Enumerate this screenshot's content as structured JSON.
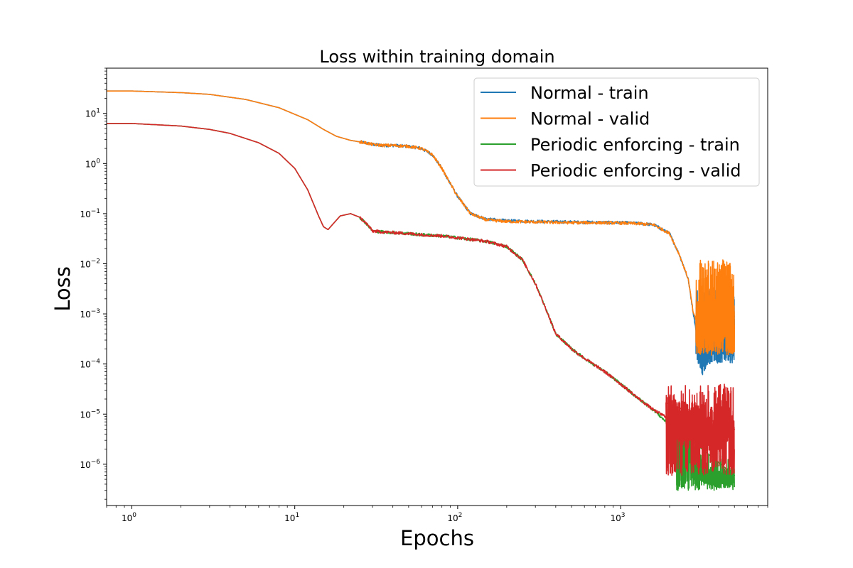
{
  "chart_data": {
    "type": "line",
    "title": "Loss within training domain",
    "xlabel": "Epochs",
    "ylabel": "Loss",
    "xscale": "log",
    "yscale": "log",
    "xlim": [
      0.7,
      8000
    ],
    "ylim": [
      1.5e-07,
      80
    ],
    "grid": false,
    "legend_position": "upper-right",
    "x_ticks": [
      {
        "value": 1,
        "base": "10",
        "exp": "0"
      },
      {
        "value": 10,
        "base": "10",
        "exp": "1"
      },
      {
        "value": 100,
        "base": "10",
        "exp": "2"
      },
      {
        "value": 1000,
        "base": "10",
        "exp": "3"
      }
    ],
    "y_ticks": [
      {
        "value": 10,
        "base": "10",
        "exp": "1"
      },
      {
        "value": 1,
        "base": "10",
        "exp": "0"
      },
      {
        "value": 0.1,
        "base": "10",
        "exp": "−1"
      },
      {
        "value": 0.01,
        "base": "10",
        "exp": "−2"
      },
      {
        "value": 0.001,
        "base": "10",
        "exp": "−3"
      },
      {
        "value": 0.0001,
        "base": "10",
        "exp": "−4"
      },
      {
        "value": 1e-05,
        "base": "10",
        "exp": "−5"
      },
      {
        "value": 1e-06,
        "base": "10",
        "exp": "−6"
      }
    ],
    "series": [
      {
        "name": "Normal - train",
        "color": "#1f77b4",
        "x": [
          0.7,
          1,
          2,
          3,
          5,
          8,
          12,
          15,
          18,
          22,
          27,
          30,
          35,
          40,
          50,
          60,
          70,
          80,
          90,
          100,
          120,
          150,
          200,
          300,
          500,
          700,
          1000,
          1300,
          1600,
          2000,
          2300,
          2600,
          2800,
          3000,
          3200,
          3500,
          4000,
          4500,
          5000
        ],
        "y": [
          28,
          28,
          26,
          24,
          19,
          13,
          7.5,
          4.8,
          3.5,
          2.9,
          2.6,
          2.4,
          2.3,
          2.3,
          2.2,
          2.0,
          1.5,
          0.8,
          0.4,
          0.22,
          0.1,
          0.078,
          0.072,
          0.07,
          0.068,
          0.067,
          0.066,
          0.064,
          0.06,
          0.04,
          0.015,
          0.005,
          0.001,
          0.00025,
          0.00012,
          0.0003,
          0.0005,
          0.0008,
          0.0009
        ],
        "noise_start": 2900,
        "noise_band": [
          0.0001,
          0.003
        ]
      },
      {
        "name": "Normal - valid",
        "color": "#ff7f0e",
        "x": [
          0.7,
          1,
          2,
          3,
          5,
          8,
          12,
          15,
          18,
          22,
          27,
          30,
          35,
          40,
          50,
          60,
          70,
          80,
          90,
          100,
          120,
          150,
          200,
          300,
          500,
          700,
          1000,
          1300,
          1600,
          2000,
          2300,
          2600,
          2800,
          3000,
          3200,
          3500,
          4000,
          4500,
          5000
        ],
        "y": [
          28,
          28,
          26,
          24,
          19,
          13,
          7.5,
          4.8,
          3.5,
          2.9,
          2.6,
          2.4,
          2.3,
          2.3,
          2.2,
          2.0,
          1.5,
          0.8,
          0.4,
          0.22,
          0.1,
          0.075,
          0.07,
          0.068,
          0.066,
          0.066,
          0.065,
          0.063,
          0.06,
          0.04,
          0.015,
          0.005,
          0.001,
          0.0006,
          0.0006,
          0.0008,
          0.0009,
          0.0009,
          0.0009
        ],
        "noise_start": 2900,
        "noise_band": [
          0.00015,
          0.012
        ]
      },
      {
        "name": "Periodic enforcing - train",
        "color": "#2ca02c",
        "x": [
          0.7,
          1,
          2,
          3,
          4,
          6,
          8,
          10,
          12,
          14,
          15,
          16,
          17,
          19,
          22,
          25,
          28,
          30,
          35,
          40,
          50,
          60,
          80,
          100,
          150,
          200,
          250,
          300,
          350,
          400,
          450,
          500,
          600,
          800,
          1000,
          1300,
          1600,
          2000,
          2500,
          3000,
          3500,
          4000,
          4500,
          5000
        ],
        "y": [
          6.3,
          6.3,
          5.6,
          4.8,
          4.0,
          2.6,
          1.6,
          0.8,
          0.3,
          0.09,
          0.055,
          0.048,
          0.06,
          0.09,
          0.1,
          0.085,
          0.06,
          0.045,
          0.043,
          0.042,
          0.04,
          0.038,
          0.036,
          0.033,
          0.028,
          0.022,
          0.012,
          0.004,
          0.0012,
          0.0004,
          0.00028,
          0.0002,
          0.00013,
          7e-05,
          4e-05,
          2e-05,
          1.2e-05,
          6e-06,
          3e-06,
          1.2e-06,
          6e-07,
          5e-07,
          5e-07,
          6e-07
        ],
        "noise_start": 2200,
        "noise_band": [
          3e-07,
          1.5e-06
        ]
      },
      {
        "name": "Periodic enforcing - valid",
        "color": "#d62728",
        "x": [
          0.7,
          1,
          2,
          3,
          4,
          6,
          8,
          10,
          12,
          14,
          15,
          16,
          17,
          19,
          22,
          25,
          28,
          30,
          35,
          40,
          50,
          60,
          80,
          100,
          150,
          200,
          250,
          300,
          350,
          400,
          450,
          500,
          600,
          800,
          1000,
          1300,
          1600,
          2000,
          2500,
          3000,
          3500,
          4000,
          4500,
          5000
        ],
        "y": [
          6.3,
          6.3,
          5.6,
          4.8,
          4.0,
          2.6,
          1.6,
          0.8,
          0.3,
          0.09,
          0.055,
          0.048,
          0.06,
          0.09,
          0.1,
          0.085,
          0.06,
          0.045,
          0.043,
          0.042,
          0.04,
          0.038,
          0.036,
          0.033,
          0.028,
          0.022,
          0.012,
          0.004,
          0.0012,
          0.0004,
          0.00028,
          0.0002,
          0.00013,
          7e-05,
          4e-05,
          2e-05,
          1.2e-05,
          8e-06,
          6e-06,
          6e-06,
          5e-06,
          5e-06,
          5e-06,
          5e-06
        ],
        "noise_start": 1900,
        "noise_band": [
          6e-07,
          4e-05
        ]
      }
    ]
  }
}
